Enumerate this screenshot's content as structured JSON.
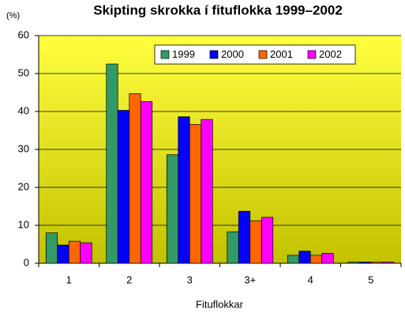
{
  "chart_data": {
    "type": "bar",
    "title": "Skipting skrokka í fituflokka 1999–2002",
    "y_label": "(%)",
    "x_label": "Fituflokkar",
    "categories": [
      "1",
      "2",
      "3",
      "3+",
      "4",
      "5"
    ],
    "series": [
      {
        "name": "1999",
        "color": "#339966",
        "values": [
          8,
          52.5,
          28.6,
          8.3,
          2.1,
          0.3
        ]
      },
      {
        "name": "2000",
        "color": "#0000ff",
        "values": [
          4.8,
          40.3,
          38.6,
          13.7,
          3.2,
          0.3
        ]
      },
      {
        "name": "2001",
        "color": "#ff6600",
        "values": [
          5.8,
          44.7,
          36.6,
          11.2,
          2.1,
          0.3
        ]
      },
      {
        "name": "2002",
        "color": "#ff00ff",
        "values": [
          5.4,
          42.6,
          37.9,
          12.1,
          2.6,
          0.3
        ]
      }
    ],
    "ylim": [
      0,
      60
    ],
    "yticks": [
      0,
      10,
      20,
      30,
      40,
      50,
      60
    ],
    "grid": true,
    "legend": "top"
  }
}
